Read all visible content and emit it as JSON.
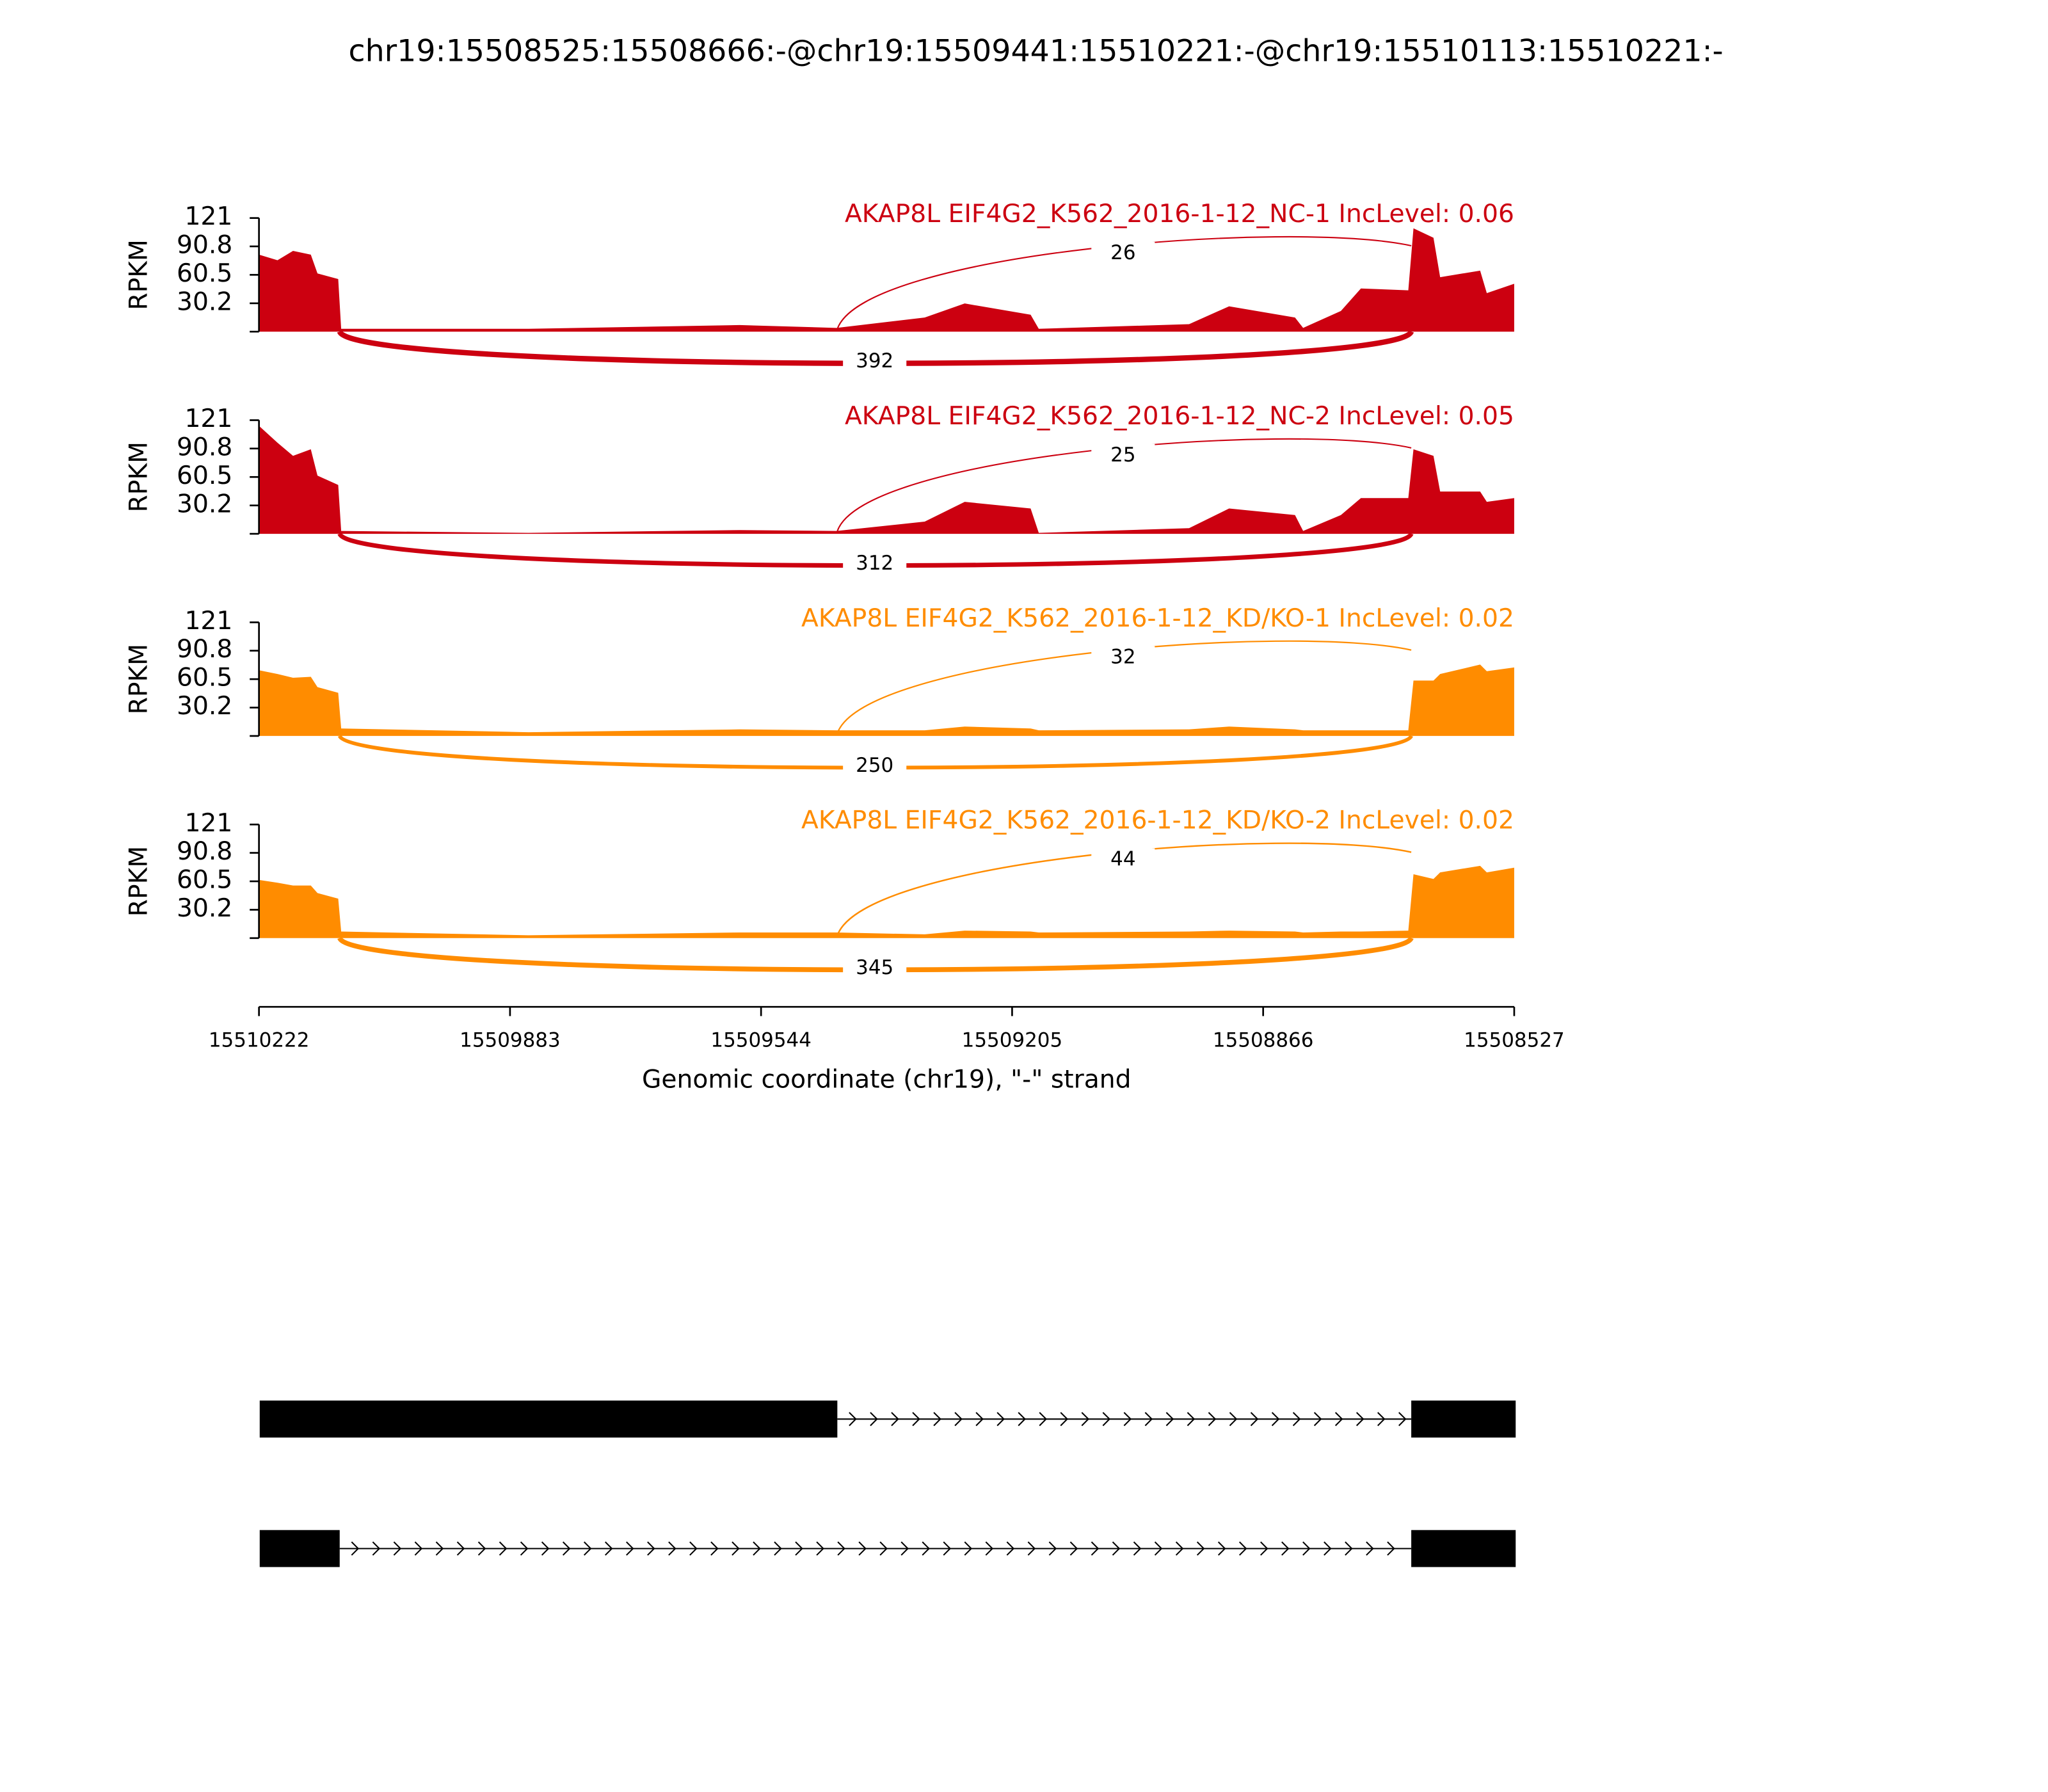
{
  "chart_data": {
    "type": "sashimi",
    "title": "chr19:15508525:15508666:-@chr19:15509441:15510221:-@chr19:15510113:15510221:-",
    "xlabel": "Genomic coordinate (chr19), \"-\" strand",
    "xlim": [
      15510222,
      15508527
    ],
    "xticks": [
      15510222,
      15509883,
      15509544,
      15509205,
      15508866,
      15508527
    ],
    "ylabel": "RPKM",
    "ylim": [
      0,
      121
    ],
    "yticks": [
      30.2,
      60.5,
      90.8,
      121
    ],
    "coverage_x": [
      15510222,
      15510197,
      15510176,
      15510152,
      15510143,
      15510115,
      15510111,
      15509858,
      15509573,
      15509442,
      15509323,
      15509269,
      15509180,
      15509169,
      15508966,
      15508912,
      15508823,
      15508812,
      15508761,
      15508734,
      15508670,
      15508663,
      15508636,
      15508627,
      15508573,
      15508564,
      15508527
    ],
    "junctions": [
      [
        15509441,
        15508666
      ],
      [
        15510113,
        15508666
      ]
    ],
    "panels": [
      {
        "label": "AKAP8L EIF4G2_K562_2016-1-12_NC-1 IncLevel: 0.06",
        "color": "#cc0010",
        "coverage": [
          82,
          76,
          86,
          82,
          62,
          56,
          3,
          3,
          7,
          4,
          15,
          30,
          18,
          3,
          8,
          27,
          15,
          4,
          22,
          46,
          44,
          110,
          100,
          58,
          65,
          41,
          51
        ],
        "junction_counts": [
          26,
          392
        ]
      },
      {
        "label": "AKAP8L EIF4G2_K562_2016-1-12_NC-2 IncLevel: 0.05",
        "color": "#cc0010",
        "coverage": [
          115,
          97,
          83,
          90,
          62,
          52,
          3,
          1,
          4,
          3,
          13,
          34,
          27,
          1,
          6,
          27,
          20,
          3,
          20,
          38,
          38,
          90,
          83,
          45,
          45,
          34,
          38
        ],
        "junction_counts": [
          25,
          312
        ]
      },
      {
        "label": "AKAP8L EIF4G2_K562_2016-1-12_KD/KO-1 IncLevel: 0.02",
        "color": "#ff8c00",
        "coverage": [
          70,
          66,
          62,
          63,
          52,
          46,
          8,
          4,
          7,
          6,
          6,
          10,
          8,
          6,
          7,
          10,
          7,
          6,
          6,
          6,
          6,
          59,
          59,
          66,
          76,
          69,
          73
        ],
        "junction_counts": [
          32,
          250
        ]
      },
      {
        "label": "AKAP8L EIF4G2_K562_2016-1-12_KD/KO-2 IncLevel: 0.02",
        "color": "#ff8c00",
        "coverage": [
          62,
          59,
          56,
          56,
          48,
          42,
          7,
          3,
          6,
          6,
          4,
          8,
          7,
          6,
          7,
          8,
          7,
          6,
          7,
          7,
          8,
          68,
          63,
          70,
          77,
          70,
          75
        ],
        "junction_counts": [
          44,
          345
        ]
      }
    ],
    "transcripts": [
      {
        "exons": [
          [
            15510221,
            15509441
          ],
          [
            15508666,
            15508525
          ]
        ]
      },
      {
        "exons": [
          [
            15510221,
            15510113
          ],
          [
            15508666,
            15508525
          ]
        ]
      }
    ]
  }
}
